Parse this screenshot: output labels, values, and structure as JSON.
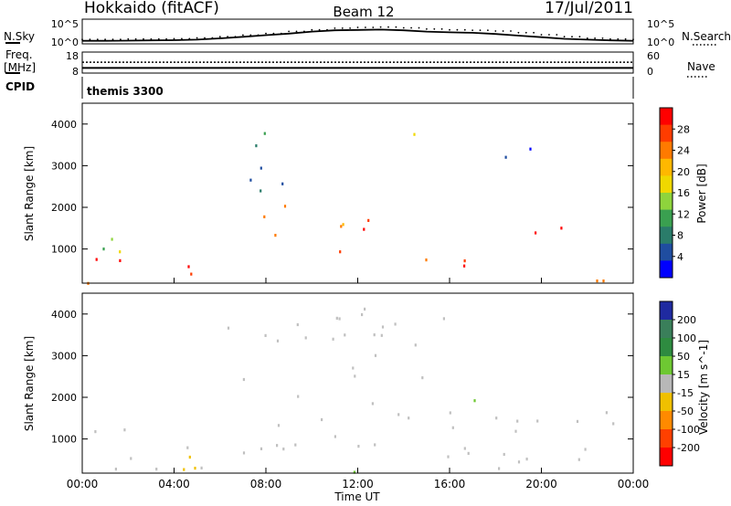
{
  "header": {
    "station": "Hokkaido (fitACF)",
    "beam": "Beam 12",
    "date": "17/Jul/2011"
  },
  "sidebar_labels": {
    "nsky": "N.Sky",
    "freq_line1": "Freq.",
    "freq_line2": "[MHz]",
    "cpid": "CPID",
    "nsearch": "N.Search",
    "nave": "Nave"
  },
  "cpid_text": "themis 3300",
  "colors": {
    "axis": "#000000",
    "background": "#ffffff",
    "no_data_gray": "#c0c0c0"
  },
  "chart_data": [
    {
      "type": "line",
      "name": "N.Sky / N.Search strip",
      "left_ticks": [
        "10^5",
        "10^0"
      ],
      "right_ticks": [
        "10^5",
        "10^0"
      ],
      "ylim": [
        0,
        5
      ],
      "x_hours": [
        0,
        1,
        2,
        3,
        4,
        5,
        6,
        7,
        8,
        9,
        10,
        11,
        12,
        13,
        14,
        15,
        16,
        17,
        18,
        19,
        20,
        21,
        22,
        23,
        24
      ],
      "nsky": [
        0.3,
        0.3,
        0.35,
        0.4,
        0.45,
        0.6,
        0.9,
        1.3,
        1.7,
        2.1,
        2.6,
        2.9,
        3.0,
        3.1,
        2.9,
        2.6,
        2.4,
        2.3,
        2.0,
        1.6,
        1.2,
        0.8,
        0.6,
        0.4,
        0.3
      ],
      "nsearch": [
        0.4,
        0.4,
        0.5,
        0.5,
        0.6,
        0.8,
        1.1,
        1.5,
        1.9,
        2.4,
        2.8,
        3.2,
        3.4,
        3.5,
        3.3,
        3.0,
        2.8,
        2.7,
        2.5,
        2.1,
        1.6,
        1.1,
        0.7,
        0.5,
        0.4
      ]
    },
    {
      "type": "line",
      "name": "Freq / Nave strip",
      "left_ticks": [
        "18",
        "8"
      ],
      "right_ticks": [
        "60",
        "0"
      ],
      "freq_mhz": 10.0,
      "nave": 33
    },
    {
      "type": "heatmap",
      "name": "Power",
      "ylabel": "Slant Range [km]",
      "y_ticks": [
        1000,
        2000,
        3000,
        4000
      ],
      "ylim": [
        180,
        4500
      ],
      "xlim": [
        0,
        24
      ],
      "colorbar_label": "Power [dB]",
      "colorbar_ticks": [
        "28",
        "24",
        "20",
        "16",
        "12",
        "8",
        "4"
      ],
      "colorbar_colors": [
        "#ff0000",
        "#ff3c00",
        "#ff7a00",
        "#ffb800",
        "#f0d800",
        "#8ed43c",
        "#3aa050",
        "#2a7c6a",
        "#1f4da0",
        "#0000ff"
      ],
      "scatter_regions": [
        {
          "t0": 0.0,
          "t1": 6.0,
          "r0": 200,
          "r1": 900,
          "level": 28
        },
        {
          "t0": 0.0,
          "t1": 6.0,
          "r0": 900,
          "r1": 1300,
          "level": 16
        },
        {
          "t0": 6.0,
          "t1": 9.0,
          "r0": 1500,
          "r1": 2100,
          "level": 26
        },
        {
          "t0": 8.0,
          "t1": 11.5,
          "r0": 600,
          "r1": 1700,
          "level": 24
        },
        {
          "t0": 11.5,
          "t1": 14.5,
          "r0": 1400,
          "r1": 2000,
          "level": 26
        },
        {
          "t0": 14.5,
          "t1": 18.0,
          "r0": 400,
          "r1": 1100,
          "level": 27
        },
        {
          "t0": 18.0,
          "t1": 21.0,
          "r0": 1300,
          "r1": 2000,
          "level": 28
        },
        {
          "t0": 21.0,
          "t1": 24.0,
          "r0": 200,
          "r1": 900,
          "level": 26
        },
        {
          "t0": 6.0,
          "t1": 9.0,
          "r0": 2300,
          "r1": 4000,
          "level": 8
        },
        {
          "t0": 14.0,
          "t1": 16.0,
          "r0": 3600,
          "r1": 4200,
          "level": 20
        },
        {
          "t0": 17.5,
          "t1": 20.0,
          "r0": 3000,
          "r1": 3800,
          "level": 6
        }
      ]
    },
    {
      "type": "heatmap",
      "name": "Velocity",
      "ylabel": "Slant Range [km]",
      "xlabel": "Time UT",
      "x_ticks": [
        "00:00",
        "04:00",
        "08:00",
        "12:00",
        "16:00",
        "20:00",
        "00:00"
      ],
      "y_ticks": [
        1000,
        2000,
        3000,
        4000
      ],
      "ylim": [
        180,
        4500
      ],
      "xlim": [
        0,
        24
      ],
      "colorbar_label": "Velocity [m s^-1]",
      "colorbar_ticks": [
        "200",
        "100",
        "50",
        "15",
        "-15",
        "-50",
        "-100",
        "-200"
      ],
      "colorbar_colors": [
        "#1f2aa0",
        "#3a7f5a",
        "#2e8b40",
        "#6ec832",
        "#b8b8b8",
        "#f0c000",
        "#ff8a00",
        "#ff4000",
        "#ff0000"
      ],
      "scatter_regions": [
        {
          "t0": 0.0,
          "t1": 6.0,
          "r0": 200,
          "r1": 1300,
          "level": 0
        },
        {
          "t0": 6.0,
          "t1": 18.0,
          "r0": 600,
          "r1": 2100,
          "level": 0
        },
        {
          "t0": 18.0,
          "t1": 24.0,
          "r0": 200,
          "r1": 2000,
          "level": 0
        },
        {
          "t0": 6.0,
          "t1": 16.0,
          "r0": 2200,
          "r1": 4200,
          "level": 0
        },
        {
          "t0": 10.5,
          "t1": 14.0,
          "r0": 180,
          "r1": 400,
          "level": 60
        },
        {
          "t0": 16.0,
          "t1": 18.0,
          "r0": 1600,
          "r1": 2100,
          "level": 70
        },
        {
          "t0": 17.5,
          "t1": 19.5,
          "r0": 700,
          "r1": 900,
          "level": 60
        },
        {
          "t0": 18.0,
          "t1": 19.0,
          "r0": 3700,
          "r1": 4100,
          "level": 70
        },
        {
          "t0": 0.0,
          "t1": 6.0,
          "r0": 200,
          "r1": 600,
          "level": -60
        }
      ]
    }
  ]
}
